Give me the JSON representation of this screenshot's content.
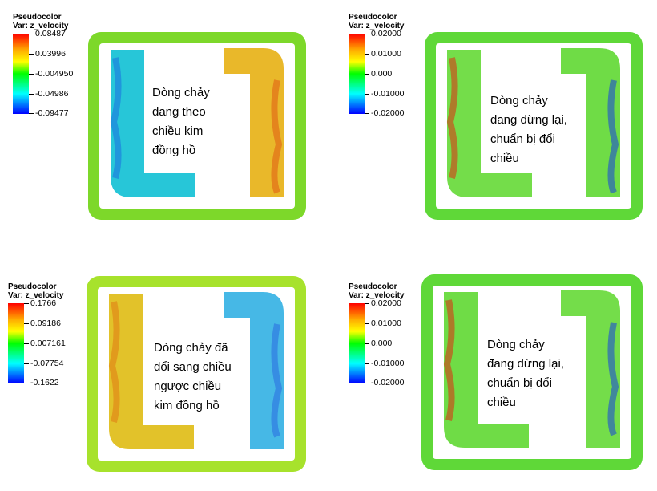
{
  "panels": [
    {
      "legend": {
        "title": "Pseudocolor",
        "var": "Var: z_velocity",
        "ticks": [
          "0.08487",
          "0.03996",
          "-0.004950",
          "-0.04986",
          "-0.09477"
        ]
      },
      "caption": [
        "Dòng chảy",
        "đang  theo",
        "chiều kim",
        "đồng hồ"
      ],
      "colors": {
        "frame": "#7dd82a",
        "left_duct": "#27c6d8",
        "right_duct": "#e9b82a",
        "accent_left": "#1b6fe0",
        "accent_right": "#e05a12"
      }
    },
    {
      "legend": {
        "title": "Pseudocolor",
        "var": "Var: z_velocity",
        "ticks": [
          "0.02000",
          "0.01000",
          "0.000",
          "-0.01000",
          "-0.02000"
        ]
      },
      "caption": [
        "Dòng chảy",
        "đang dừng lại,",
        "chuẩn bị đổi",
        "chiều"
      ],
      "colors": {
        "frame": "#5fd838",
        "left_duct": "#74dd4a",
        "right_duct": "#6fdc46",
        "accent_left": "#e02a10",
        "accent_right": "#1540e0"
      }
    },
    {
      "legend": {
        "title": "Pseudocolor",
        "var": "Var: z_velocity",
        "ticks": [
          "0.1766",
          "0.09186",
          "0.007161",
          "-0.07754",
          "-0.1622"
        ]
      },
      "caption": [
        "Dòng chảy đã",
        "đổi sang chiều",
        "ngược chiều",
        "kim đồng hồ"
      ],
      "colors": {
        "frame": "#a7e22c",
        "left_duct": "#e2c22a",
        "right_duct": "#46b8e6",
        "accent_left": "#e07a12",
        "accent_right": "#2a6ae0"
      }
    },
    {
      "legend": {
        "title": "Pseudocolor",
        "var": "Var: z_velocity",
        "ticks": [
          "0.02000",
          "0.01000",
          "0.000",
          "-0.01000",
          "-0.02000"
        ]
      },
      "caption": [
        "Dòng chảy",
        "đang dừng lại,",
        "chuẩn bị đổi",
        "chiều"
      ],
      "colors": {
        "frame": "#5fd838",
        "left_duct": "#6fdc46",
        "right_duct": "#74dd4a",
        "accent_left": "#e02a10",
        "accent_right": "#1540e0"
      }
    }
  ]
}
